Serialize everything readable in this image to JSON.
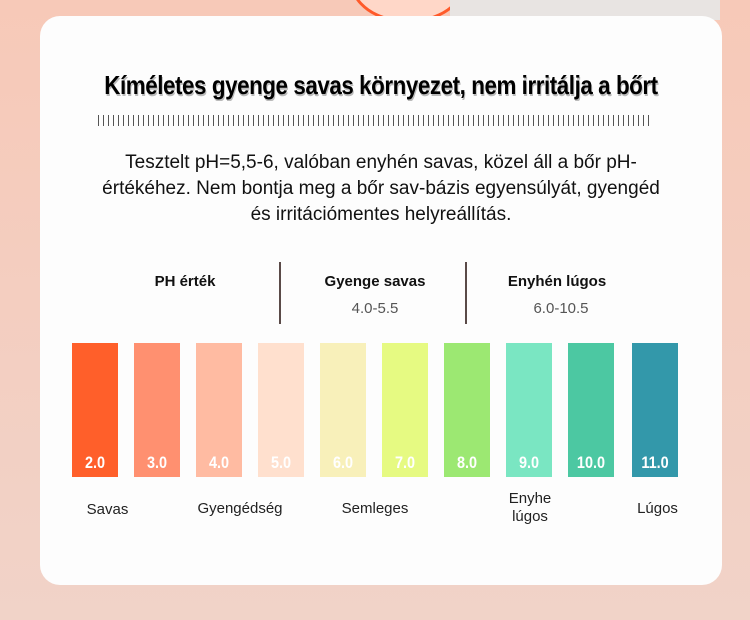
{
  "title": "Kíméletes gyenge savas környezet, nem irritálja a bőrt",
  "description": "Tesztelt pH=5,5-6, valóban enyhén savas, közel áll a bőr pH-értékéhez. Nem bontja meg a bőr sav-bázis egyensúlyát, gyengéd és irritációmentes helyreállítás.",
  "headers": [
    {
      "label": "PH érték",
      "range": ""
    },
    {
      "label": "Gyenge savas",
      "range": "4.0-5.5"
    },
    {
      "label": "Enyhén lúgos",
      "range": "6.0-10.5"
    }
  ],
  "bars": [
    {
      "value": "2.0",
      "color": "#FF5F2A"
    },
    {
      "value": "3.0",
      "color": "#FF9070"
    },
    {
      "value": "4.0",
      "color": "#FFBBA2"
    },
    {
      "value": "5.0",
      "color": "#FFE0CE"
    },
    {
      "value": "6.0",
      "color": "#F8F0BA"
    },
    {
      "value": "7.0",
      "color": "#E6FA82"
    },
    {
      "value": "8.0",
      "color": "#9CE872"
    },
    {
      "value": "9.0",
      "color": "#7AE6C2"
    },
    {
      "value": "10.0",
      "color": "#4CC8A2"
    },
    {
      "value": "11.0",
      "color": "#3398AA"
    }
  ],
  "labels": [
    "Savas",
    "Gyengédség",
    "Semleges",
    "Enyhe\nlúgos",
    "Lúgos"
  ]
}
